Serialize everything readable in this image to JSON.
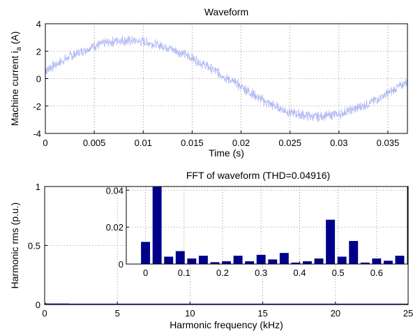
{
  "chart_data": [
    {
      "type": "line",
      "title": "Waveform",
      "xlabel": "Time (s)",
      "ylabel": "Machine current i",
      "ylabel_sub": "a",
      "ylabel_unit": " (A)",
      "xlim": [
        0,
        0.037
      ],
      "ylim": [
        -4,
        4
      ],
      "xticks": [
        0,
        0.005,
        0.01,
        0.015,
        0.02,
        0.025,
        0.03,
        0.035
      ],
      "xtick_labels": [
        "0",
        "0.005",
        "0.01",
        "0.015",
        "0.02",
        "0.025",
        "0.03",
        "0.035"
      ],
      "yticks": [
        -4,
        -2,
        0,
        2,
        4
      ],
      "ytick_labels": [
        "-4",
        "-2",
        "0",
        "2",
        "4"
      ],
      "grid": true,
      "color": "#aab4f2",
      "series": [
        {
          "x": [
            0,
            0.0025,
            0.005,
            0.0075,
            0.01,
            0.0125,
            0.015,
            0.0175,
            0.02,
            0.0225,
            0.025,
            0.0275,
            0.03,
            0.0325,
            0.035,
            0.037
          ],
          "y": [
            0.6,
            1.6,
            2.4,
            2.8,
            2.7,
            2.3,
            1.5,
            0.5,
            -0.6,
            -1.7,
            -2.5,
            -2.8,
            -2.6,
            -2.0,
            -1.1,
            -0.2
          ]
        }
      ]
    },
    {
      "type": "bar",
      "title": "FFT of waveform (THD=0.04916)",
      "xlabel": "Harmonic frequency (kHz)",
      "ylabel": "Harmonic rms (p.u.)",
      "xlim": [
        0,
        25
      ],
      "ylim": [
        0,
        1
      ],
      "xticks": [
        0,
        5,
        10,
        15,
        20,
        25
      ],
      "xtick_labels": [
        "0",
        "5",
        "10",
        "15",
        "20",
        "25"
      ],
      "yticks": [
        0,
        0.5,
        1
      ],
      "ytick_labels": [
        "0",
        "0.5",
        "1"
      ],
      "grid": true,
      "color": "#00008b",
      "inset": {
        "xlim": [
          -0.05,
          0.68
        ],
        "ylim": [
          0,
          0.042
        ],
        "xticks": [
          0,
          0.1,
          0.2,
          0.3,
          0.4,
          0.5,
          0.6
        ],
        "xtick_labels": [
          "0",
          "0.1",
          "0.2",
          "0.3",
          "0.4",
          "0.5",
          "0.6"
        ],
        "yticks": [
          0,
          0.02,
          0.04
        ],
        "ytick_labels": [
          "0",
          "0.02",
          "0.04"
        ],
        "x": [
          0,
          0.03,
          0.06,
          0.09,
          0.12,
          0.15,
          0.18,
          0.21,
          0.24,
          0.27,
          0.3,
          0.33,
          0.36,
          0.39,
          0.42,
          0.45,
          0.48,
          0.51,
          0.54,
          0.57,
          0.6,
          0.63,
          0.66
        ],
        "values": [
          0.012,
          0.042,
          0.004,
          0.007,
          0.003,
          0.0045,
          0.001,
          0.0015,
          0.0045,
          0.0015,
          0.005,
          0.0025,
          0.006,
          0.0008,
          0.0015,
          0.003,
          0.024,
          0.004,
          0.0125,
          0.0008,
          0.003,
          0.0018,
          0.0045
        ]
      }
    }
  ]
}
